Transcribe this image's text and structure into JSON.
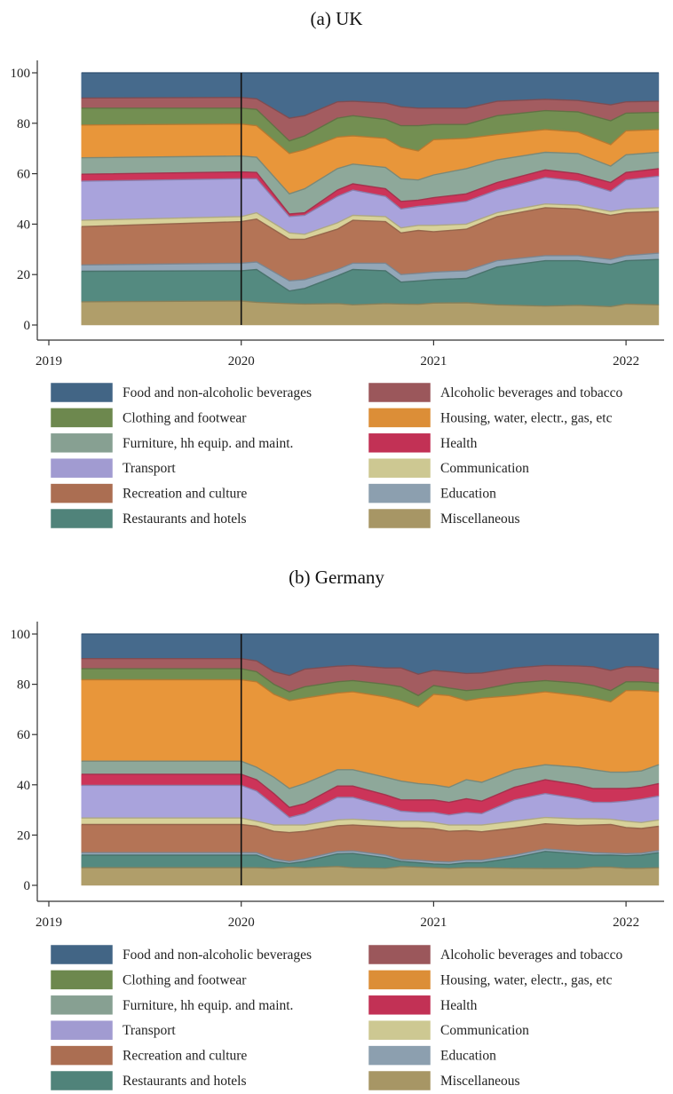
{
  "chart_data": [
    {
      "type": "area",
      "stacked": true,
      "title": "(a) UK",
      "xlabel": "",
      "ylabel": "",
      "xlim": [
        2018.83,
        2022.25
      ],
      "ylim": [
        0,
        100
      ],
      "xticks": [
        2019,
        2020,
        2021,
        2022
      ],
      "xtick_labels": [
        "2019",
        "2020",
        "2021",
        "2022"
      ],
      "yticks": [
        0,
        20,
        40,
        60,
        80,
        100
      ],
      "ytick_labels": [
        "0",
        "20",
        "40",
        "60",
        "80",
        "100"
      ],
      "vline_x": 2020,
      "stack_order_bottom_to_top": [
        "Miscellaneous",
        "Restaurants and hotels",
        "Education",
        "Recreation and culture",
        "Communication",
        "Transport",
        "Health",
        "Furniture, hh equip. and maint.",
        "Housing, water, electr., gas, etc",
        "Clothing and footwear",
        "Alcoholic beverages and tobacco",
        "Food and non-alcoholic beverages"
      ],
      "value_note": "cumulative upper bound (%) of each stacked series, bottom to top; top series reaches 100",
      "x": [
        2019.17,
        2020.0,
        2020.08,
        2020.25,
        2020.33,
        2020.5,
        2020.58,
        2020.75,
        2020.83,
        2020.92,
        2021.0,
        2021.17,
        2021.33,
        2021.58,
        2021.75,
        2021.92,
        2022.0,
        2022.17
      ],
      "cumulative": [
        [
          9.2,
          21.3,
          23.8,
          39,
          41.5,
          57,
          59.8,
          66.3,
          79.3,
          86,
          90,
          100
        ],
        [
          9.5,
          21.5,
          24.5,
          41,
          43,
          58,
          60.7,
          67,
          79.7,
          86,
          90.2,
          100
        ],
        [
          9,
          22,
          25,
          42,
          44.5,
          58,
          60.5,
          66.5,
          79,
          85.5,
          89.7,
          100
        ],
        [
          8.5,
          13.5,
          17.5,
          34,
          36.5,
          43,
          44,
          52,
          68,
          73,
          82,
          100
        ],
        [
          8.3,
          14.5,
          18,
          34,
          36,
          43.5,
          44.5,
          54,
          69.5,
          75,
          83,
          100
        ],
        [
          8.5,
          19.5,
          22,
          38,
          40.5,
          51,
          53.5,
          62,
          74.5,
          82,
          88.5,
          100
        ],
        [
          8,
          22,
          24.5,
          41.5,
          43.5,
          53.5,
          56,
          63.8,
          75,
          83,
          88.7,
          100
        ],
        [
          8.5,
          21.5,
          24.5,
          41,
          43,
          51,
          54,
          62.5,
          74,
          81.5,
          88,
          100
        ],
        [
          8.3,
          17,
          20,
          36.5,
          38.5,
          46,
          49,
          58,
          70.5,
          79,
          86.5,
          100
        ],
        [
          8.2,
          17.5,
          20.5,
          37.5,
          39.5,
          47,
          49.5,
          57.5,
          69,
          79,
          86,
          100
        ],
        [
          8.7,
          18,
          21,
          37,
          39.5,
          47.5,
          50.5,
          59.5,
          73.5,
          79.5,
          86,
          100
        ],
        [
          8.8,
          18.5,
          21.5,
          38,
          40,
          49,
          52,
          62,
          74,
          79.5,
          86,
          100
        ],
        [
          8,
          23,
          25.5,
          43,
          44.5,
          53.5,
          56.5,
          65.5,
          75.5,
          83,
          88.7,
          100
        ],
        [
          7.5,
          25.5,
          27.5,
          46.5,
          48,
          58.5,
          61.5,
          68.5,
          77.5,
          85,
          89.5,
          100
        ],
        [
          7.8,
          25.5,
          27.5,
          46,
          47.5,
          57,
          60,
          68,
          76.5,
          84.5,
          89,
          100
        ],
        [
          7.3,
          24,
          26,
          43.5,
          45,
          53,
          56.5,
          63,
          71.5,
          81,
          87.3,
          100
        ],
        [
          8.3,
          25.5,
          27.5,
          44.5,
          46,
          57.5,
          60.5,
          67.5,
          77,
          84,
          88.5,
          100
        ],
        [
          8,
          26,
          28.5,
          45,
          46.5,
          59,
          62,
          68.5,
          77.5,
          84.3,
          88.7,
          100
        ]
      ],
      "legend": "bottom, two columns"
    },
    {
      "type": "area",
      "stacked": true,
      "title": "(b) Germany",
      "xlabel": "",
      "ylabel": "",
      "xlim": [
        2018.83,
        2022.25
      ],
      "ylim": [
        0,
        100
      ],
      "xticks": [
        2019,
        2020,
        2021,
        2022
      ],
      "xtick_labels": [
        "2019",
        "2020",
        "2021",
        "2022"
      ],
      "yticks": [
        0,
        20,
        40,
        60,
        80,
        100
      ],
      "ytick_labels": [
        "0",
        "20",
        "40",
        "60",
        "80",
        "100"
      ],
      "vline_x": 2020,
      "stack_order_bottom_to_top": [
        "Miscellaneous",
        "Restaurants and hotels",
        "Education",
        "Recreation and culture",
        "Communication",
        "Transport",
        "Health",
        "Furniture, hh equip. and maint.",
        "Housing, water, electr., gas, etc",
        "Clothing and footwear",
        "Alcoholic beverages and tobacco",
        "Food and non-alcoholic beverages"
      ],
      "value_note": "cumulative upper bound (%) of each stacked series, bottom to top; top series reaches 100",
      "x": [
        2019.17,
        2020.0,
        2020.08,
        2020.17,
        2020.25,
        2020.33,
        2020.5,
        2020.58,
        2020.75,
        2020.83,
        2020.92,
        2021.0,
        2021.08,
        2021.17,
        2021.25,
        2021.42,
        2021.58,
        2021.75,
        2021.83,
        2021.92,
        2022.0,
        2022.08,
        2022.17
      ],
      "cumulative": [
        [
          7,
          12,
          13,
          24.2,
          26.8,
          39.8,
          44.2,
          49.4,
          81.8,
          86.2,
          90.2,
          100
        ],
        [
          7,
          12,
          13,
          24.2,
          26.8,
          39.8,
          44.2,
          49.4,
          81.8,
          86.2,
          90.2,
          100
        ],
        [
          7,
          12,
          13,
          23.5,
          25.5,
          37.5,
          42,
          47,
          81,
          85,
          89.3,
          100
        ],
        [
          6.8,
          9.5,
          10.5,
          21.5,
          24,
          32,
          36.5,
          43,
          76,
          80,
          85,
          100
        ],
        [
          7.2,
          8.7,
          9.5,
          21,
          24,
          27,
          31,
          38.5,
          73.5,
          77,
          83.5,
          100
        ],
        [
          7,
          9.5,
          10.5,
          21.5,
          24,
          28.5,
          32.5,
          40.5,
          74.5,
          79,
          86,
          100
        ],
        [
          7.5,
          12.5,
          13.5,
          23.7,
          26,
          35,
          39.5,
          46,
          76.5,
          81,
          87.2,
          100
        ],
        [
          7,
          12.7,
          13.7,
          24,
          26.3,
          35,
          39.5,
          46,
          77,
          81.5,
          87.5,
          100
        ],
        [
          6.8,
          11,
          12,
          23.3,
          25.5,
          31.5,
          36,
          43,
          75,
          80,
          86.5,
          100
        ],
        [
          7.5,
          9.5,
          10.3,
          22.8,
          25.5,
          29.5,
          34,
          41.5,
          73.5,
          79,
          86.5,
          100
        ],
        [
          7.2,
          9,
          10,
          22.8,
          25.5,
          29,
          34,
          40.5,
          71,
          75.5,
          84,
          100
        ],
        [
          7,
          8.5,
          9.5,
          22.5,
          25,
          29,
          34,
          40,
          76,
          79.5,
          85.5,
          100
        ],
        [
          6.8,
          8.3,
          9.3,
          21.5,
          24,
          28,
          33,
          39,
          75.5,
          78.5,
          85,
          100
        ],
        [
          7,
          9,
          10,
          21.8,
          24,
          29,
          34.5,
          42,
          73.5,
          77.5,
          84.3,
          100
        ],
        [
          7,
          9,
          10,
          21.3,
          24,
          28.5,
          33.5,
          41,
          74.5,
          78,
          84.5,
          100
        ],
        [
          6.8,
          11,
          12,
          22.8,
          25.5,
          34,
          39,
          46,
          75.5,
          80.5,
          86.5,
          100
        ],
        [
          6.7,
          13.5,
          14.5,
          24.5,
          27,
          36.5,
          42,
          48,
          77,
          81.5,
          87.5,
          100
        ],
        [
          6.7,
          12.5,
          13.5,
          23.8,
          26.5,
          34.5,
          40,
          47,
          75.5,
          80.5,
          87.3,
          100
        ],
        [
          7.2,
          12,
          13,
          24,
          26.5,
          33,
          38.5,
          46,
          74.5,
          79.5,
          87,
          100
        ],
        [
          7.2,
          12,
          12.8,
          24.2,
          26.3,
          33,
          38.5,
          45,
          73,
          77.5,
          85.5,
          100
        ],
        [
          6.8,
          11.8,
          12.6,
          23,
          25.5,
          33.5,
          38.5,
          45,
          77.5,
          81,
          87,
          100
        ],
        [
          6.8,
          12,
          12.8,
          22.6,
          25,
          34.3,
          39,
          45.5,
          77.5,
          81,
          87,
          100
        ],
        [
          7,
          13,
          13.8,
          23.5,
          26,
          35.5,
          40.5,
          48,
          77,
          80.5,
          86,
          100
        ]
      ],
      "legend": "bottom, two columns"
    }
  ],
  "series": [
    {
      "name": "Miscellaneous",
      "color": "#b09e6a"
    },
    {
      "name": "Restaurants and hotels",
      "color": "#548a80"
    },
    {
      "name": "Education",
      "color": "#93a7b8"
    },
    {
      "name": "Recreation and culture",
      "color": "#b47456"
    },
    {
      "name": "Communication",
      "color": "#d8d29a"
    },
    {
      "name": "Transport",
      "color": "#a9a3dc"
    },
    {
      "name": "Health",
      "color": "#cc3459"
    },
    {
      "name": "Furniture, hh equip. and maint.",
      "color": "#8ea89a"
    },
    {
      "name": "Housing, water, electr., gas, etc",
      "color": "#e8963a"
    },
    {
      "name": "Clothing and footwear",
      "color": "#738f52"
    },
    {
      "name": "Alcoholic beverages and tobacco",
      "color": "#a35c60"
    },
    {
      "name": "Food and non-alcoholic beverages",
      "color": "#466a8c"
    }
  ],
  "legend_items": [
    "Food and non-alcoholic beverages",
    "Alcoholic beverages and tobacco",
    "Clothing and footwear",
    "Housing, water, electr., gas, etc",
    "Furniture, hh equip. and maint.",
    "Health",
    "Transport",
    "Communication",
    "Recreation and culture",
    "Education",
    "Restaurants and hotels",
    "Miscellaneous"
  ]
}
